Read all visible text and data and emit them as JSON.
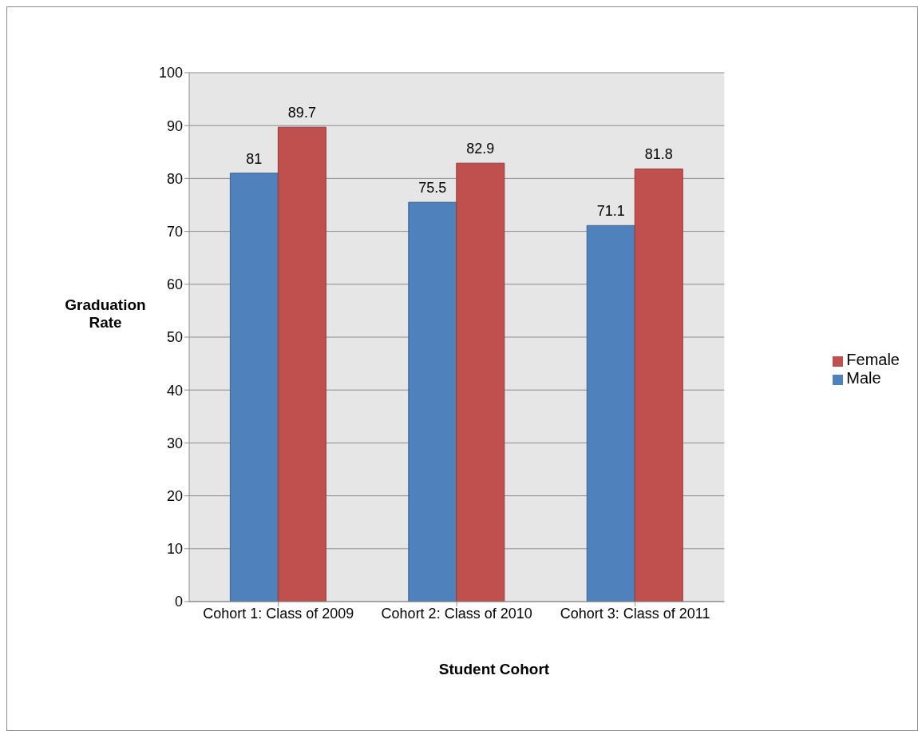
{
  "chart_data": {
    "type": "bar",
    "xlabel": "Student Cohort",
    "ylabel": "Graduation Rate",
    "categories": [
      "Cohort 1: Class of 2009",
      "Cohort 2: Class of 2010",
      "Cohort 3: Class of 2011"
    ],
    "series": [
      {
        "name": "Male",
        "color": "#4f81bd",
        "values": [
          81,
          75.5,
          71.1
        ]
      },
      {
        "name": "Female",
        "color": "#c0504d",
        "values": [
          89.7,
          82.9,
          81.8
        ]
      }
    ],
    "ylim": [
      0,
      100
    ],
    "yticks": [
      0,
      10,
      20,
      30,
      40,
      50,
      60,
      70,
      80,
      90,
      100
    ],
    "grid": "y",
    "legend": "right",
    "data_labels": true
  }
}
